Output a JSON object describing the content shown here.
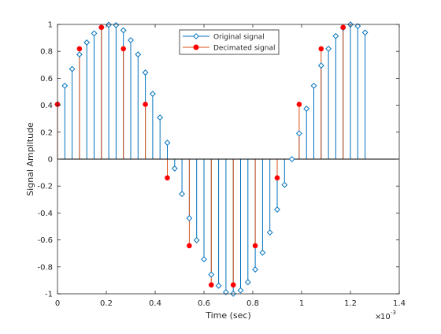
{
  "chart_data": {
    "type": "stem",
    "xlabel": "Time (sec)",
    "ylabel": "Signal Amplitude",
    "x_exponent_label": "10",
    "x_exponent_power": "-3",
    "xlim": [
      0,
      0.0014
    ],
    "ylim": [
      -1,
      1
    ],
    "x_ticks": [
      0,
      0.0002,
      0.0004,
      0.0006,
      0.0008,
      0.001,
      0.0012,
      0.0014
    ],
    "x_tick_labels": [
      "0",
      "0.2",
      "0.4",
      "0.6",
      "0.8",
      "1",
      "1.2",
      "1.4"
    ],
    "y_ticks": [
      -1,
      -0.8,
      -0.6,
      -0.4,
      -0.2,
      0,
      0.2,
      0.4,
      0.6,
      0.8,
      1
    ],
    "y_tick_labels": [
      "-1",
      "-0.8",
      "-0.6",
      "-0.4",
      "-0.2",
      "0",
      "0.2",
      "0.4",
      "0.6",
      "0.8",
      "1"
    ],
    "grid": false,
    "legend_position": "top-center",
    "series": [
      {
        "name": "Original signal",
        "color": "#0072BD",
        "marker": "diamond",
        "x": [
          0,
          3e-05,
          6e-05,
          9e-05,
          0.00012,
          0.00015,
          0.00018,
          0.00021,
          0.00024,
          0.00027,
          0.0003,
          0.00033,
          0.00036,
          0.00039,
          0.00042,
          0.00045,
          0.00048,
          0.00051,
          0.00054,
          0.00057,
          0.0006,
          0.00063,
          0.00066,
          0.00069,
          0.00072,
          0.00075,
          0.00078,
          0.00081,
          0.00084,
          0.00087,
          0.0009,
          0.00093,
          0.00096,
          0.00099,
          0.00102,
          0.00105,
          0.00108,
          0.00111,
          0.00114,
          0.00117,
          0.0012,
          0.00123,
          0.00126
        ],
        "y": [
          0.4067,
          0.5446,
          0.6691,
          0.7771,
          0.866,
          0.9336,
          0.9781,
          0.9976,
          0.9945,
          0.9563,
          0.8829,
          0.7771,
          0.6428,
          0.4848,
          0.309,
          0.1219,
          -0.0698,
          -0.2588,
          -0.4384,
          -0.6018,
          -0.7431,
          -0.8572,
          -0.9397,
          -0.9877,
          -0.9994,
          -0.9744,
          -0.9135,
          -0.8192,
          -0.6947,
          -0.5446,
          -0.3746,
          -0.1908,
          0.0,
          0.1908,
          0.3746,
          0.5446,
          0.6947,
          0.8192,
          0.9135,
          0.9744,
          0.9994,
          0.9877,
          0.9397
        ]
      },
      {
        "name": "Decimated signal",
        "color": "#D95319",
        "marker_color": "#FF0000",
        "marker": "circle",
        "x": [
          0,
          9e-05,
          0.00018,
          0.00027,
          0.00036,
          0.00045,
          0.00054,
          0.00063,
          0.00072,
          0.00081,
          0.0009,
          0.00099,
          0.00108,
          0.00117
        ],
        "y": [
          0.4067,
          0.8192,
          0.9781,
          0.8192,
          0.4067,
          -0.1392,
          -0.6428,
          -0.9336,
          -0.9336,
          -0.6428,
          -0.1392,
          0.4067,
          0.8192,
          0.9781
        ]
      }
    ]
  }
}
